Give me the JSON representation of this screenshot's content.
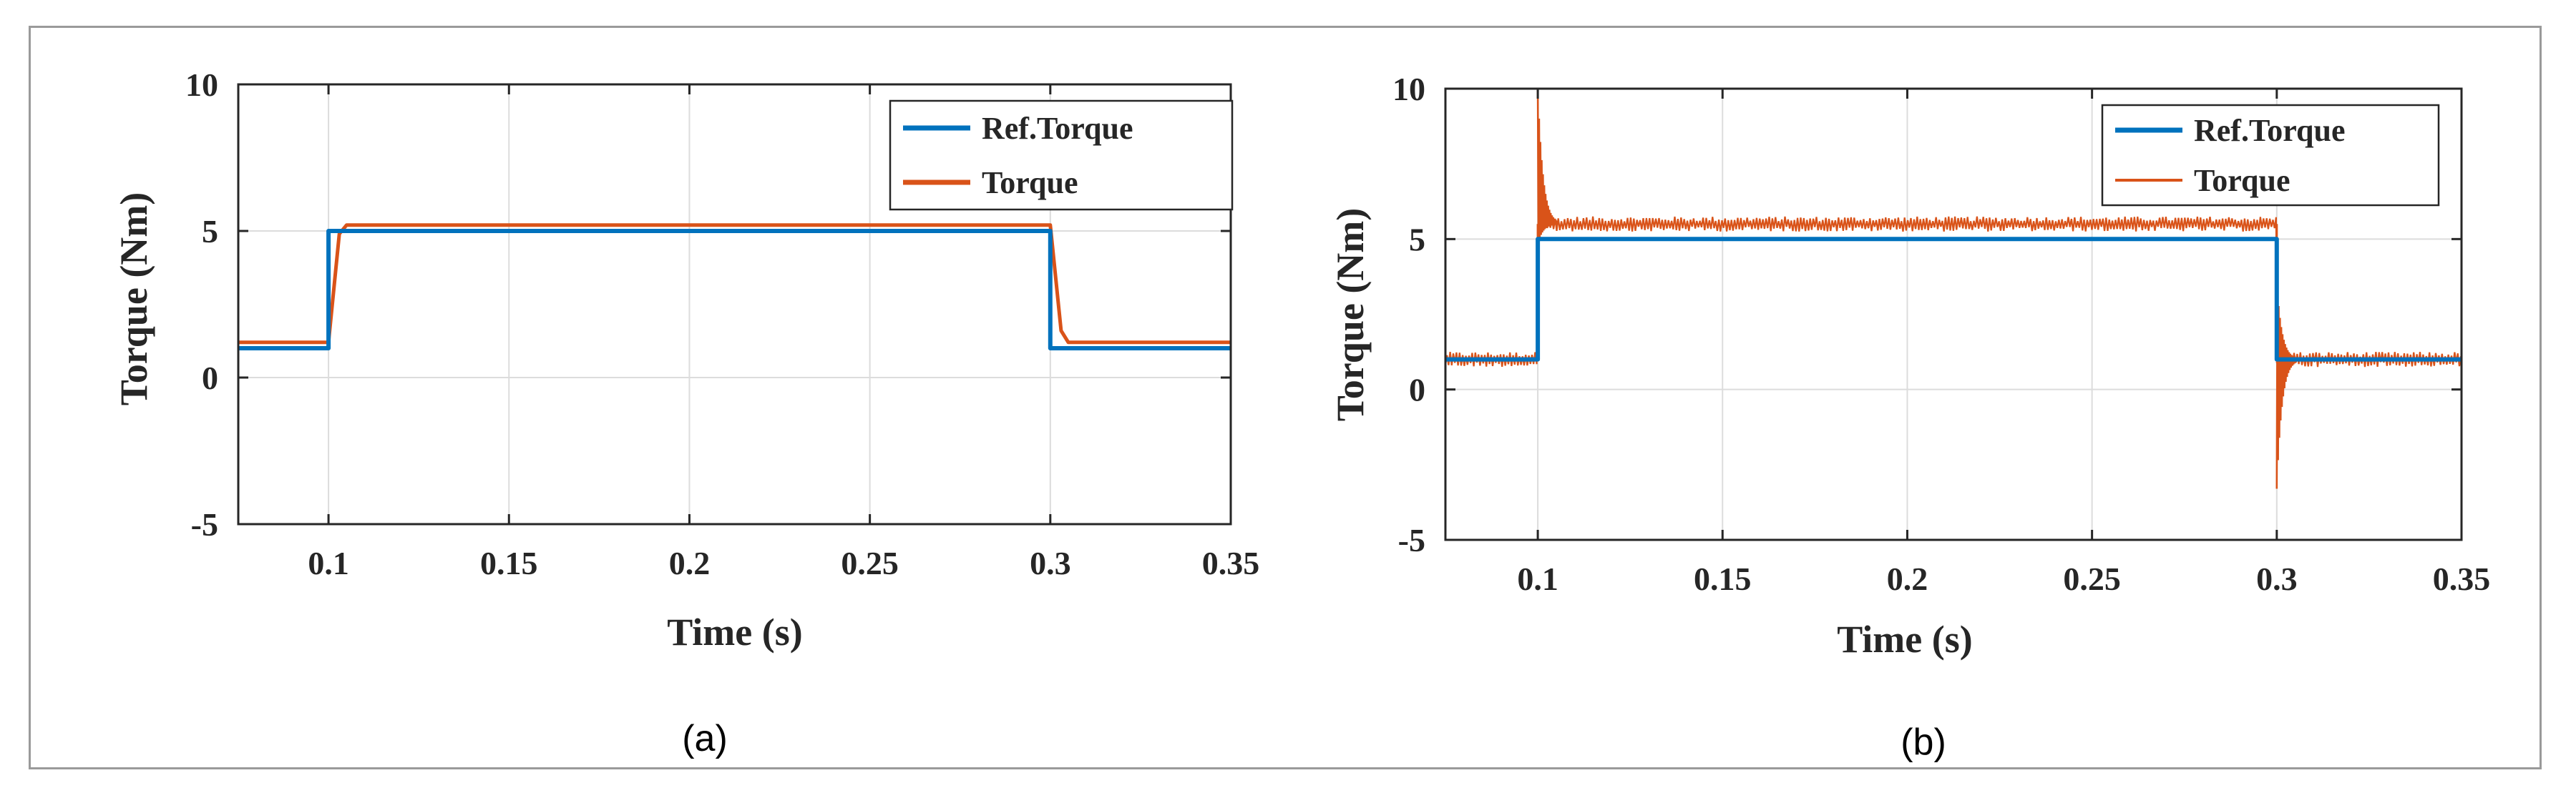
{
  "chart_data": [
    {
      "type": "line",
      "caption": "(a)",
      "xlabel": "Time (s)",
      "ylabel": "Torque (Nm)",
      "xlim": [
        0.075,
        0.35
      ],
      "ylim": [
        -5,
        10
      ],
      "xticks": [
        0.1,
        0.15,
        0.2,
        0.25,
        0.3,
        0.35
      ],
      "xtick_labels": [
        "0.1",
        "0.15",
        "0.2",
        "0.25",
        "0.3",
        "0.35"
      ],
      "yticks": [
        -5,
        0,
        5,
        10
      ],
      "ytick_labels": [
        "-5",
        "0",
        "5",
        "10"
      ],
      "grid": true,
      "legend_position": "top-right",
      "series": [
        {
          "name": "Ref.Torque",
          "color": "#0072BD",
          "style": "thick",
          "x": [
            0.075,
            0.1,
            0.1,
            0.3,
            0.3,
            0.35
          ],
          "y": [
            1,
            1,
            5,
            5,
            1,
            1
          ]
        },
        {
          "name": "Torque",
          "color": "#D95319",
          "style": "smooth",
          "x": [
            0.075,
            0.1,
            0.103,
            0.105,
            0.3,
            0.303,
            0.305,
            0.35
          ],
          "y": [
            1.2,
            1.2,
            4.9,
            5.2,
            5.2,
            1.6,
            1.2,
            1.2
          ]
        }
      ]
    },
    {
      "type": "line",
      "caption": "(b)",
      "xlabel": "Time (s)",
      "ylabel": "Torque (Nm)",
      "xlim": [
        0.075,
        0.35
      ],
      "ylim": [
        -5,
        10
      ],
      "xticks": [
        0.1,
        0.15,
        0.2,
        0.25,
        0.3,
        0.35
      ],
      "xtick_labels": [
        "0.1",
        "0.15",
        "0.2",
        "0.25",
        "0.3",
        "0.35"
      ],
      "yticks": [
        -5,
        0,
        5,
        10
      ],
      "ytick_labels": [
        "-5",
        "0",
        "5",
        "10"
      ],
      "grid": true,
      "legend_position": "top-right",
      "series": [
        {
          "name": "Ref.Torque",
          "color": "#0072BD",
          "style": "thick",
          "x": [
            0.075,
            0.1,
            0.1,
            0.3,
            0.3,
            0.35
          ],
          "y": [
            1,
            1,
            5,
            5,
            1,
            1
          ]
        },
        {
          "name": "Torque",
          "color": "#D95319",
          "style": "noisy",
          "segments": [
            {
              "x_start": 0.075,
              "x_end": 0.1,
              "mean": 1.0,
              "ripple": 0.25
            },
            {
              "x_start": 0.1,
              "x_end": 0.3,
              "mean": 5.5,
              "ripple": 0.25
            },
            {
              "x_start": 0.3,
              "x_end": 0.35,
              "mean": 1.0,
              "ripple": 0.25
            }
          ],
          "spikes": [
            {
              "x": 0.1,
              "peak": 10,
              "trough": 1.0
            },
            {
              "x": 0.3,
              "peak": 5.5,
              "trough": -3.3
            }
          ]
        }
      ]
    }
  ]
}
